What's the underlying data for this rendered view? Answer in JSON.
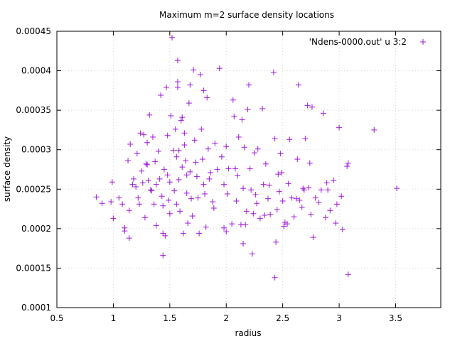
{
  "chart_data": {
    "type": "scatter",
    "title": "Maximum m=2 surface density locations",
    "xlabel": "radius",
    "ylabel": "surface density",
    "xlim": [
      0.5,
      3.9
    ],
    "ylim": [
      0.0001,
      0.00045
    ],
    "xticks": [
      "0.5",
      "1",
      "1.5",
      "2",
      "2.5",
      "3",
      "3.5"
    ],
    "xtick_values": [
      0.5,
      1,
      1.5,
      2,
      2.5,
      3,
      3.5
    ],
    "yticks": [
      "0.0001",
      "0.00015",
      "0.0002",
      "0.00025",
      "0.0003",
      "0.00035",
      "0.0004",
      "0.00045"
    ],
    "ytick_values": [
      0.0001,
      0.00015,
      0.0002,
      0.00025,
      0.0003,
      0.00035,
      0.0004,
      0.00045
    ],
    "grid": true,
    "legend_position": "top-right",
    "marker_color": "#9400d3",
    "series": [
      {
        "name": "'Ndens-0000.out' u 3:2",
        "points": [
          [
            0.85,
            0.00024
          ],
          [
            0.9,
            0.000232
          ],
          [
            0.98,
            0.000234
          ],
          [
            0.99,
            0.000259
          ],
          [
            1.0,
            0.000213
          ],
          [
            1.05,
            0.000239
          ],
          [
            1.08,
            0.000231
          ],
          [
            1.1,
            0.000201
          ],
          [
            1.1,
            0.000197
          ],
          [
            1.13,
            0.000286
          ],
          [
            1.14,
            0.000223
          ],
          [
            1.14,
            0.000188
          ],
          [
            1.15,
            0.000307
          ],
          [
            1.17,
            0.000256
          ],
          [
            1.18,
            0.000263
          ],
          [
            1.2,
            0.000253
          ],
          [
            1.21,
            0.000295
          ],
          [
            1.22,
            0.000239
          ],
          [
            1.23,
            0.000231
          ],
          [
            1.24,
            0.000321
          ],
          [
            1.25,
            0.000273
          ],
          [
            1.26,
            0.000258
          ],
          [
            1.27,
            0.000319
          ],
          [
            1.28,
            0.000214
          ],
          [
            1.29,
            0.000282
          ],
          [
            1.3,
            0.000309
          ],
          [
            1.3,
            0.000281
          ],
          [
            1.31,
            0.000261
          ],
          [
            1.32,
            0.000344
          ],
          [
            1.33,
            0.000249
          ],
          [
            1.34,
            0.000248
          ],
          [
            1.35,
            0.000316
          ],
          [
            1.36,
            0.000231
          ],
          [
            1.37,
            0.000285
          ],
          [
            1.38,
            0.000256
          ],
          [
            1.38,
            0.000204
          ],
          [
            1.4,
            0.000298
          ],
          [
            1.41,
            0.000263
          ],
          [
            1.42,
            0.000369
          ],
          [
            1.43,
            0.000241
          ],
          [
            1.44,
            0.000229
          ],
          [
            1.44,
            0.000194
          ],
          [
            1.44,
            0.000166
          ],
          [
            1.45,
            0.000275
          ],
          [
            1.46,
            0.000191
          ],
          [
            1.47,
            0.000379
          ],
          [
            1.48,
            0.000318
          ],
          [
            1.48,
            0.000268
          ],
          [
            1.49,
            0.000236
          ],
          [
            1.5,
            0.000219
          ],
          [
            1.5,
            0.000259
          ],
          [
            1.51,
            0.000343
          ],
          [
            1.52,
            0.000442
          ],
          [
            1.53,
            0.000299
          ],
          [
            1.54,
            0.000248
          ],
          [
            1.55,
            0.000326
          ],
          [
            1.56,
            0.000291
          ],
          [
            1.56,
            0.000231
          ],
          [
            1.57,
            0.000386
          ],
          [
            1.57,
            0.000379
          ],
          [
            1.57,
            0.000413
          ],
          [
            1.58,
            0.000299
          ],
          [
            1.58,
            0.000262
          ],
          [
            1.59,
            0.000222
          ],
          [
            1.6,
            0.000337
          ],
          [
            1.61,
            0.000341
          ],
          [
            1.61,
            0.000278
          ],
          [
            1.62,
            0.000194
          ],
          [
            1.63,
            0.000321
          ],
          [
            1.63,
            0.000306
          ],
          [
            1.64,
            0.000286
          ],
          [
            1.65,
            0.000268
          ],
          [
            1.65,
            0.000245
          ],
          [
            1.66,
            0.000207
          ],
          [
            1.67,
            0.000359
          ],
          [
            1.68,
            0.000382
          ],
          [
            1.68,
            0.000272
          ],
          [
            1.69,
            0.000238
          ],
          [
            1.7,
            0.000216
          ],
          [
            1.71,
            0.000401
          ],
          [
            1.72,
            0.000312
          ],
          [
            1.73,
            0.000284
          ],
          [
            1.74,
            0.000266
          ],
          [
            1.75,
            0.000239
          ],
          [
            1.76,
            0.000194
          ],
          [
            1.77,
            0.000395
          ],
          [
            1.78,
            0.000326
          ],
          [
            1.79,
            0.000288
          ],
          [
            1.8,
            0.000375
          ],
          [
            1.8,
            0.000256
          ],
          [
            1.81,
            0.000244
          ],
          [
            1.82,
            0.000202
          ],
          [
            1.83,
            0.000366
          ],
          [
            1.84,
            0.000301
          ],
          [
            1.85,
            0.000263
          ],
          [
            1.86,
            0.000271
          ],
          [
            1.88,
            0.000234
          ],
          [
            1.89,
            0.000226
          ],
          [
            1.9,
            0.000308
          ],
          [
            1.92,
            0.000275
          ],
          [
            1.94,
            0.000403
          ],
          [
            1.96,
            0.000291
          ],
          [
            1.98,
            0.000256
          ],
          [
            1.98,
            0.000201
          ],
          [
            2.0,
            0.000304
          ],
          [
            2.0,
            0.000196
          ],
          [
            2.01,
            0.000244
          ],
          [
            2.02,
            0.000276
          ],
          [
            2.05,
            0.000206
          ],
          [
            2.06,
            0.000363
          ],
          [
            2.07,
            0.000342
          ],
          [
            2.08,
            0.000276
          ],
          [
            2.09,
            0.000235
          ],
          [
            2.1,
            0.000267
          ],
          [
            2.11,
            0.000316
          ],
          [
            2.13,
            0.000205
          ],
          [
            2.14,
            0.000338
          ],
          [
            2.15,
            0.000251
          ],
          [
            2.15,
            0.000181
          ],
          [
            2.16,
            0.000303
          ],
          [
            2.17,
            0.000205
          ],
          [
            2.18,
            0.000222
          ],
          [
            2.19,
            0.000351
          ],
          [
            2.2,
            0.000382
          ],
          [
            2.21,
            0.000276
          ],
          [
            2.22,
            0.000249
          ],
          [
            2.23,
            0.000168
          ],
          [
            2.24,
            0.000219
          ],
          [
            2.25,
            0.000296
          ],
          [
            2.26,
            0.000243
          ],
          [
            2.27,
            0.000232
          ],
          [
            2.28,
            0.000301
          ],
          [
            2.3,
            0.000213
          ],
          [
            2.32,
            0.000352
          ],
          [
            2.33,
            0.000256
          ],
          [
            2.34,
            0.000217
          ],
          [
            2.35,
            0.000282
          ],
          [
            2.37,
            0.000238
          ],
          [
            2.38,
            0.000255
          ],
          [
            2.39,
            0.000218
          ],
          [
            2.42,
            0.000398
          ],
          [
            2.43,
            0.000314
          ],
          [
            2.43,
            0.000138
          ],
          [
            2.44,
            0.000183
          ],
          [
            2.45,
            0.000224
          ],
          [
            2.46,
            0.000269
          ],
          [
            2.47,
            0.000247
          ],
          [
            2.48,
            0.000295
          ],
          [
            2.49,
            0.000271
          ],
          [
            2.5,
            0.000235
          ],
          [
            2.51,
            0.000203
          ],
          [
            2.52,
            0.000208
          ],
          [
            2.54,
            0.000206
          ],
          [
            2.55,
            0.000257
          ],
          [
            2.56,
            0.000313
          ],
          [
            2.58,
            0.000239
          ],
          [
            2.6,
            0.000215
          ],
          [
            2.62,
            0.000238
          ],
          [
            2.63,
            0.000288
          ],
          [
            2.64,
            0.000382
          ],
          [
            2.65,
            0.000236
          ],
          [
            2.67,
            0.000227
          ],
          [
            2.68,
            0.000251
          ],
          [
            2.69,
            0.000249
          ],
          [
            2.7,
            0.000314
          ],
          [
            2.72,
            0.000356
          ],
          [
            2.73,
            0.000252
          ],
          [
            2.74,
            0.000283
          ],
          [
            2.75,
            0.000218
          ],
          [
            2.76,
            0.000354
          ],
          [
            2.77,
            0.000189
          ],
          [
            2.79,
            0.000239
          ],
          [
            2.82,
            0.000233
          ],
          [
            2.84,
            0.000249
          ],
          [
            2.86,
            0.000346
          ],
          [
            2.88,
            0.000214
          ],
          [
            2.89,
            0.000258
          ],
          [
            2.9,
            0.000249
          ],
          [
            2.92,
            0.000223
          ],
          [
            2.95,
            0.000261
          ],
          [
            2.97,
            0.000207
          ],
          [
            2.98,
            0.000231
          ],
          [
            3.0,
            0.000328
          ],
          [
            3.02,
            0.000241
          ],
          [
            3.03,
            0.000199
          ],
          [
            3.07,
            0.000279
          ],
          [
            3.08,
            0.000283
          ],
          [
            3.08,
            0.000142
          ],
          [
            3.31,
            0.000325
          ],
          [
            3.51,
            0.000251
          ]
        ]
      }
    ]
  }
}
